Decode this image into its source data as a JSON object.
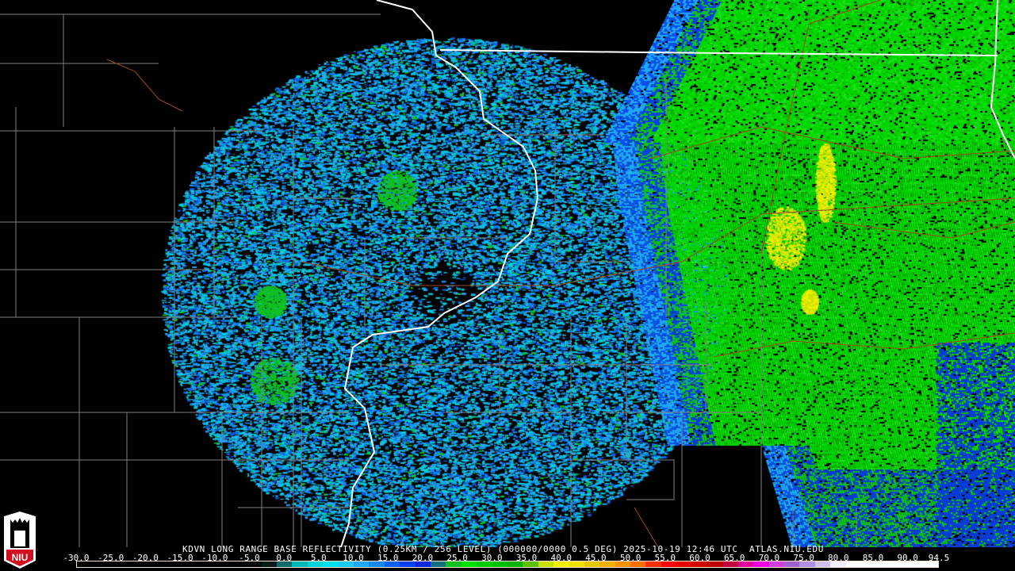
{
  "product": {
    "title": "KDVN LONG RANGE BASE REFLECTIVITY (0.25KM / 256 LEVEL) (000000/0000 0.5 DEG) 2025-10-19 12:46 UTC  ATLAS.NIU.EDU",
    "logo_text": "NIU"
  },
  "legend": {
    "labels": [
      "-30.0",
      "-25.0",
      "-20.0",
      "-15.0",
      "-10.0",
      "-5.0",
      "0.0",
      "5.0",
      "10.0",
      "15.0",
      "20.0",
      "25.0",
      "30.0",
      "35.0",
      "40.0",
      "45.0",
      "50.0",
      "55.0",
      "60.0",
      "65.0",
      "70.0",
      "75.0",
      "80.0",
      "85.0",
      "90.0",
      "94.5"
    ],
    "colors": [
      "#000000",
      "#000000",
      "#000000",
      "#000000",
      "#000000",
      "#000000",
      "#000000",
      "#000000",
      "#000000",
      "#000000",
      "#000000",
      "#030808",
      "#0a1a1a",
      "#0f6a6a",
      "#00b8b8",
      "#00d4d8",
      "#00e0f0",
      "#20c8f8",
      "#20a8f8",
      "#1888f0",
      "#0a60f0",
      "#0840e8",
      "#0a28e0",
      "#107080",
      "#10c020",
      "#00e000",
      "#00d000",
      "#00c000",
      "#10b000",
      "#60c000",
      "#c8e000",
      "#f0f000",
      "#f0e000",
      "#e8c800",
      "#f0b000",
      "#f89000",
      "#f87000",
      "#f83000",
      "#f80000",
      "#e00000",
      "#d00000",
      "#c00000",
      "#c00040",
      "#e000a0",
      "#f000e0",
      "#d040e0",
      "#a060d0",
      "#b090e0",
      "#d0c0f0",
      "#f0f0ff",
      "#ffffff",
      "#ffffff",
      "#ffffff",
      "#ffffff",
      "#ffffff",
      "#ffffff"
    ]
  },
  "map_colors": {
    "state_border": "#ffffff",
    "county_border": "#808080",
    "highway": "#a04820"
  }
}
